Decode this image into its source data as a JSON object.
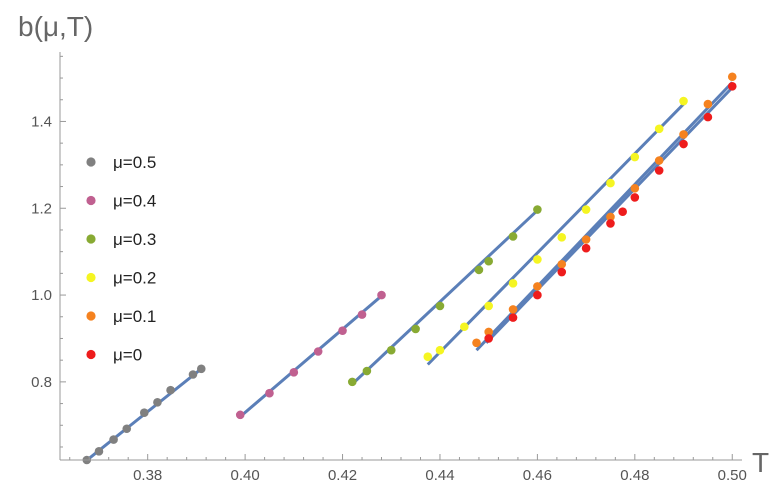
{
  "chart_data": {
    "type": "scatter",
    "title": "",
    "xlabel": "T",
    "ylabel": "b(μ,T)",
    "xlim": [
      0.362,
      0.502
    ],
    "ylim": [
      0.62,
      1.56
    ],
    "xticks": [
      0.38,
      0.4,
      0.42,
      0.44,
      0.46,
      0.48,
      0.5
    ],
    "xtick_labels": [
      "0.38",
      "0.40",
      "0.42",
      "0.44",
      "0.46",
      "0.48",
      "0.50"
    ],
    "yticks": [
      0.8,
      1.0,
      1.2,
      1.4
    ],
    "ytick_labels": [
      "0.8",
      "1.0",
      "1.2",
      "1.4"
    ],
    "grid": false,
    "legend_position": "left",
    "fit_line_color": "#5b7fb8",
    "series": [
      {
        "name": "μ=0.5",
        "color": "#808080",
        "x": [
          0.3675,
          0.37,
          0.373,
          0.3757,
          0.3793,
          0.382,
          0.3847,
          0.3893,
          0.391
        ],
        "y": [
          0.62,
          0.64,
          0.667,
          0.692,
          0.729,
          0.753,
          0.781,
          0.817,
          0.83
        ],
        "fit": [
          [
            0.367,
            0.615
          ],
          [
            0.391,
            0.83
          ]
        ]
      },
      {
        "name": "μ=0.4",
        "color": "#c06090",
        "x": [
          0.399,
          0.405,
          0.41,
          0.415,
          0.42,
          0.424,
          0.428
        ],
        "y": [
          0.724,
          0.774,
          0.822,
          0.87,
          0.918,
          0.955,
          1.0
        ],
        "fit": [
          [
            0.399,
            0.72
          ],
          [
            0.428,
            0.998
          ]
        ]
      },
      {
        "name": "μ=0.3",
        "color": "#88aa33",
        "x": [
          0.422,
          0.425,
          0.43,
          0.435,
          0.44,
          0.448,
          0.45,
          0.455,
          0.46
        ],
        "y": [
          0.8,
          0.825,
          0.873,
          0.922,
          0.975,
          1.058,
          1.078,
          1.135,
          1.197
        ],
        "fit": [
          [
            0.422,
            0.795
          ],
          [
            0.46,
            1.195
          ]
        ]
      },
      {
        "name": "μ=0.2",
        "color": "#f5f522",
        "x": [
          0.4375,
          0.44,
          0.445,
          0.45,
          0.455,
          0.46,
          0.465,
          0.47,
          0.475,
          0.48,
          0.485,
          0.49
        ],
        "y": [
          0.858,
          0.873,
          0.927,
          0.975,
          1.027,
          1.082,
          1.133,
          1.197,
          1.258,
          1.318,
          1.383,
          1.447
        ],
        "fit": [
          [
            0.4375,
            0.84
          ],
          [
            0.49,
            1.44
          ]
        ]
      },
      {
        "name": "μ=0.1",
        "color": "#f5821f",
        "x": [
          0.4475,
          0.45,
          0.455,
          0.46,
          0.465,
          0.47,
          0.475,
          0.48,
          0.485,
          0.49,
          0.495,
          0.5
        ],
        "y": [
          0.89,
          0.915,
          0.967,
          1.02,
          1.071,
          1.128,
          1.18,
          1.246,
          1.31,
          1.37,
          1.44,
          1.503
        ],
        "fit": [
          [
            0.4475,
            0.873
          ],
          [
            0.5,
            1.49
          ]
        ]
      },
      {
        "name": "μ=0",
        "color": "#ee1c1c",
        "x": [
          0.45,
          0.455,
          0.46,
          0.465,
          0.47,
          0.475,
          0.4775,
          0.48,
          0.485,
          0.49,
          0.495,
          0.5
        ],
        "y": [
          0.9,
          0.948,
          1.0,
          1.053,
          1.108,
          1.165,
          1.192,
          1.225,
          1.287,
          1.348,
          1.41,
          1.481
        ],
        "fit": [
          [
            0.4495,
            0.89
          ],
          [
            0.5,
            1.478
          ]
        ]
      }
    ]
  }
}
